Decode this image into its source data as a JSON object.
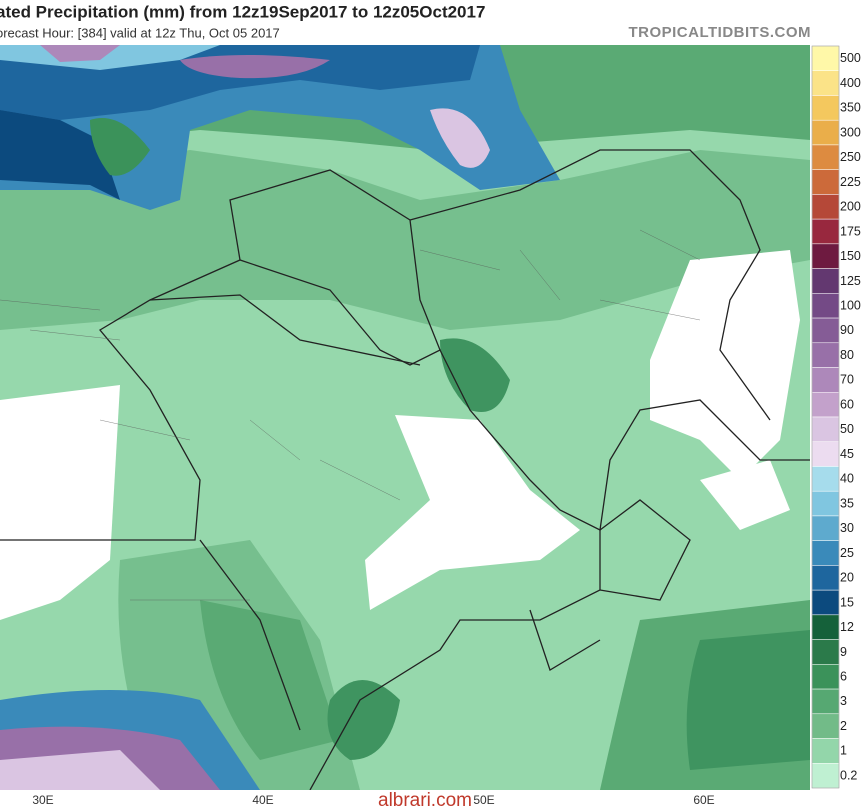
{
  "header": {
    "title": "ated Precipitation (mm) from 12z19Sep2017 to 12z05Oct2017",
    "subtitle": "orecast Hour: [384]   valid at 12z Thu, Oct 05 2017",
    "brand": "TROPICALTIDBITS.COM"
  },
  "legend": {
    "items": [
      {
        "label": "500",
        "color": "#fff8a8"
      },
      {
        "label": "400",
        "color": "#fbe388"
      },
      {
        "label": "350",
        "color": "#f4c85e"
      },
      {
        "label": "300",
        "color": "#eaae4a"
      },
      {
        "label": "250",
        "color": "#dd8b40"
      },
      {
        "label": "225",
        "color": "#cc6a3a"
      },
      {
        "label": "200",
        "color": "#b54838"
      },
      {
        "label": "175",
        "color": "#98283e"
      },
      {
        "label": "150",
        "color": "#6e1a40"
      },
      {
        "label": "125",
        "color": "#633870"
      },
      {
        "label": "100",
        "color": "#744a86"
      },
      {
        "label": "90",
        "color": "#855c96"
      },
      {
        "label": "80",
        "color": "#9870a8"
      },
      {
        "label": "70",
        "color": "#ad88ba"
      },
      {
        "label": "60",
        "color": "#c3a1cb"
      },
      {
        "label": "50",
        "color": "#dac5e2"
      },
      {
        "label": "45",
        "color": "#ecdcf0"
      },
      {
        "label": "40",
        "color": "#a6dcec"
      },
      {
        "label": "35",
        "color": "#80c6e0"
      },
      {
        "label": "30",
        "color": "#5eaace"
      },
      {
        "label": "25",
        "color": "#3a8aba"
      },
      {
        "label": "20",
        "color": "#1e669e"
      },
      {
        "label": "15",
        "color": "#0c4a7e"
      },
      {
        "label": "12",
        "color": "#15613a"
      },
      {
        "label": "9",
        "color": "#2b7a4a"
      },
      {
        "label": "6",
        "color": "#3b925a"
      },
      {
        "label": "3",
        "color": "#56a872"
      },
      {
        "label": "2",
        "color": "#72bb88"
      },
      {
        "label": "1",
        "color": "#93d6aa"
      },
      {
        "label": "0.2",
        "color": "#bff0d2"
      }
    ]
  },
  "longitudes": [
    "30E",
    "40E",
    "50E",
    "60E"
  ],
  "watermark": "albrari.com"
}
